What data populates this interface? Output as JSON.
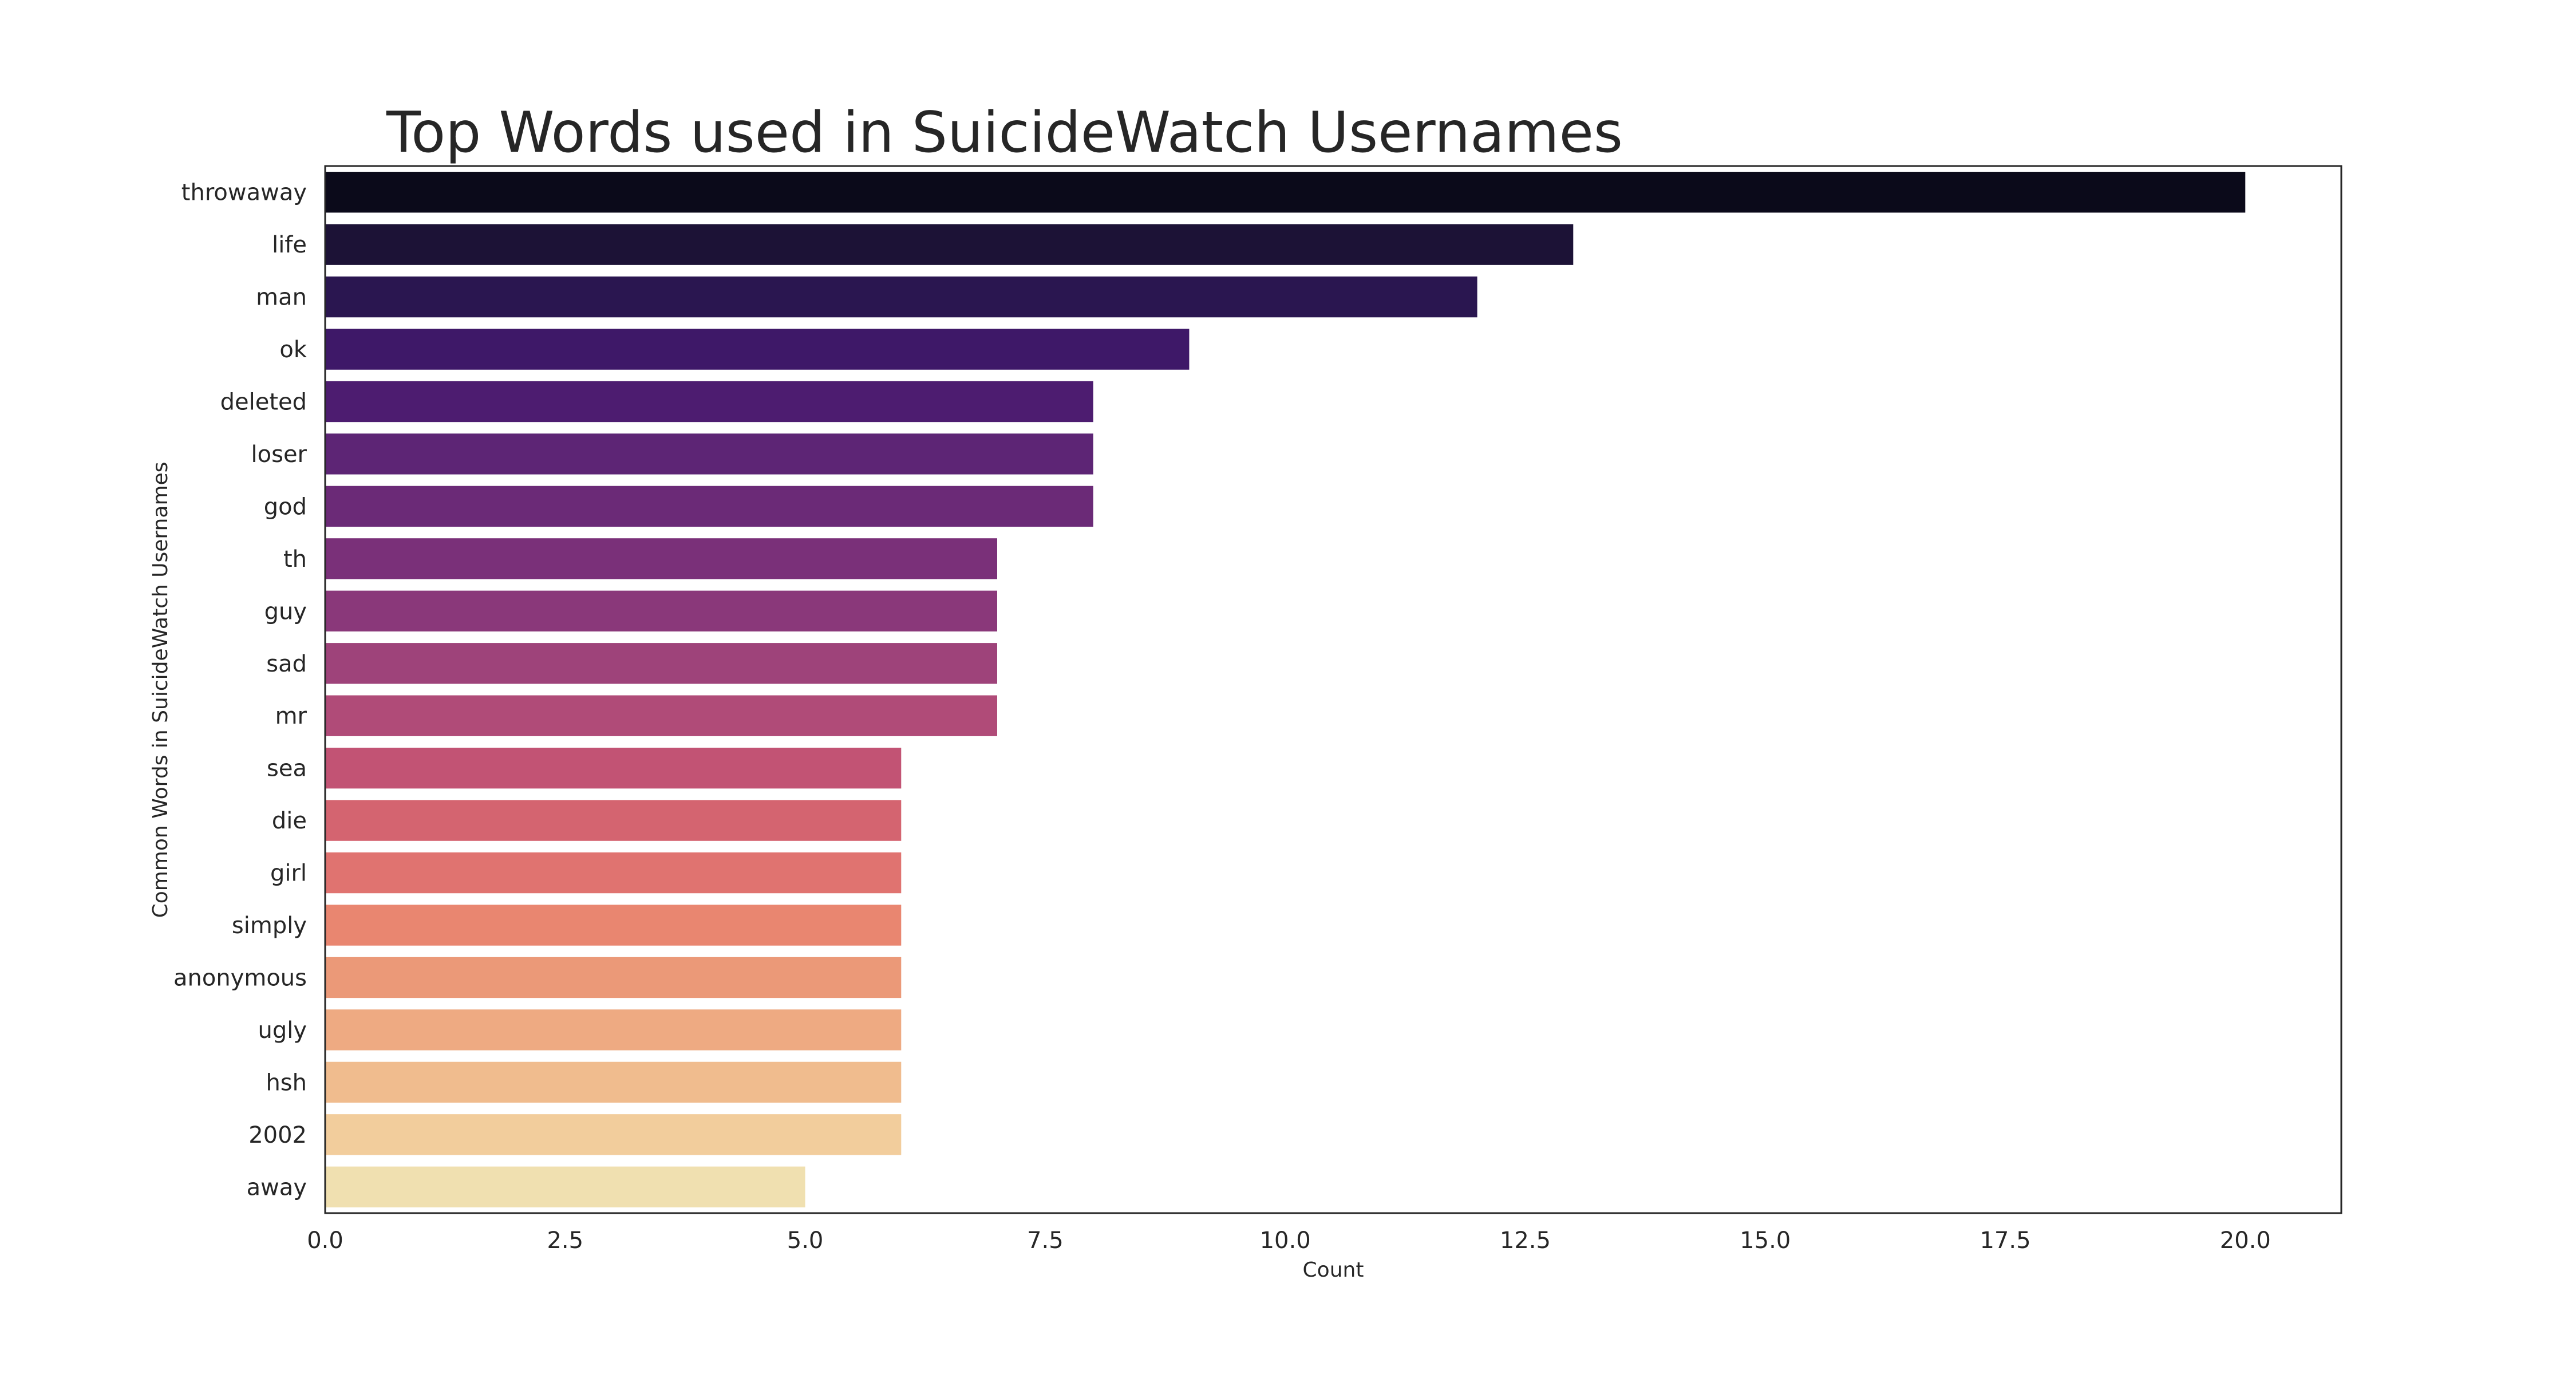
{
  "chart_data": {
    "type": "bar",
    "orientation": "horizontal",
    "title": "Top Words used in SuicideWatch Usernames",
    "xlabel": "Count",
    "ylabel": "Common Words in SuicideWatch Usernames",
    "categories": [
      "throwaway",
      "life",
      "man",
      "ok",
      "deleted",
      "loser",
      "god",
      "th",
      "guy",
      "sad",
      "mr",
      "sea",
      "die",
      "girl",
      "simply",
      "anonymous",
      "ugly",
      "hsh",
      "2002",
      "away"
    ],
    "values": [
      20,
      13,
      12,
      9,
      8,
      8,
      8,
      7,
      7,
      7,
      7,
      6,
      6,
      6,
      6,
      6,
      6,
      6,
      6,
      5
    ],
    "colors": [
      "#0b0a1a",
      "#1c1236",
      "#2a1650",
      "#3e1868",
      "#4d1c70",
      "#5d2575",
      "#6b2a77",
      "#7a3079",
      "#8a387a",
      "#9e437a",
      "#b04b78",
      "#c25374",
      "#d46470",
      "#e07370",
      "#e98670",
      "#eb9978",
      "#eeaa82",
      "#f0bc8e",
      "#f2cd9c",
      "#f0e0b0"
    ],
    "xlim": [
      0,
      21
    ],
    "xticks": [
      "0.0",
      "2.5",
      "5.0",
      "7.5",
      "10.0",
      "12.5",
      "15.0",
      "17.5",
      "20.0"
    ],
    "grid": false,
    "legend": "none"
  }
}
